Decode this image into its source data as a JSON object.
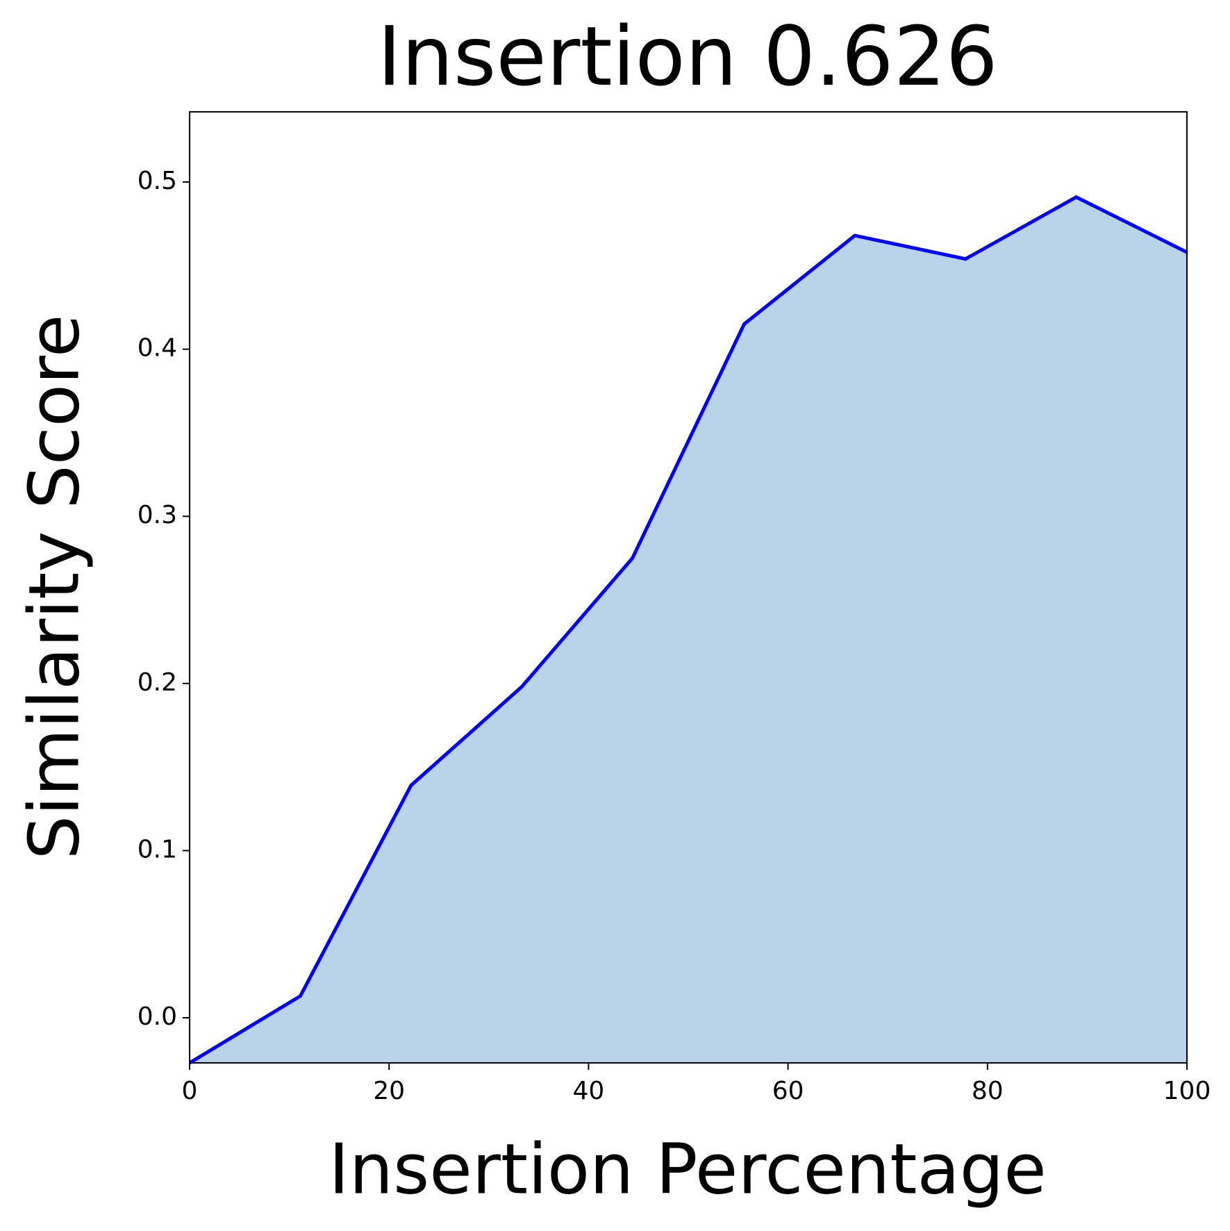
{
  "chart_data": {
    "type": "area",
    "title": "Insertion 0.626",
    "x_label": "Insertion Percentage",
    "y_label": "Similarity Score",
    "x": [
      0,
      11.1,
      22.2,
      33.3,
      44.4,
      55.6,
      66.7,
      77.8,
      88.9,
      100
    ],
    "series": [
      {
        "color": "#0000ff",
        "fill_color": "#b9d4e8",
        "values": [
          -0.027,
          0.013,
          0.139,
          0.198,
          0.275,
          0.415,
          0.468,
          0.454,
          0.491,
          0.458
        ]
      }
    ],
    "xlim": [
      0,
      100
    ],
    "ylim": [
      -0.027,
      0.542
    ],
    "xticks": [
      0,
      20,
      40,
      60,
      80,
      100
    ],
    "yticks": [
      {
        "value": 0,
        "label": "0.0"
      },
      {
        "value": 0.1,
        "label": "0.1"
      },
      {
        "value": 0.2,
        "label": "0.2"
      },
      {
        "value": 0.3,
        "label": "0.3"
      },
      {
        "value": 0.4,
        "label": "0.4"
      },
      {
        "value": 0.5,
        "label": "0.5"
      }
    ],
    "grid": false
  }
}
